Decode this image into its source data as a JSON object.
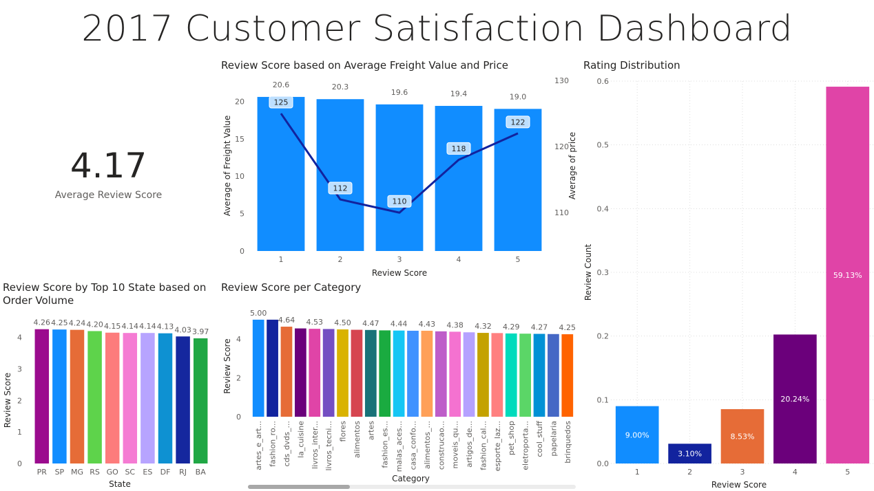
{
  "dashboard": {
    "title": "2017 Customer Satisfaction Dashboard"
  },
  "kpi": {
    "value": "4.17",
    "label": "Average Review Score"
  },
  "chart_data": [
    {
      "id": "freight",
      "type": "bar",
      "title": "Review Score based on Average Freight Value and Price",
      "xlabel": "Review Score",
      "ylabel": "Average of Freight Value",
      "y2label": "Average of price",
      "categories": [
        "1",
        "2",
        "3",
        "4",
        "5"
      ],
      "series": [
        {
          "name": "Average of Freight Value",
          "type": "bar",
          "values": [
            20.6,
            20.3,
            19.6,
            19.4,
            19.0
          ],
          "labels": [
            "20.6",
            "20.3",
            "19.6",
            "19.4",
            "19.0"
          ],
          "color": "#118DFF"
        },
        {
          "name": "Average of price",
          "type": "line",
          "axis": "secondary",
          "values": [
            125,
            112,
            110,
            118,
            122
          ],
          "labels": [
            "125",
            "112",
            "110",
            "118",
            "122"
          ],
          "color": "#12239E"
        }
      ],
      "ylim": [
        0,
        22.8
      ],
      "yticks": [
        "0",
        "5",
        "10",
        "15",
        "20"
      ],
      "y2lim": [
        104.2,
        130
      ],
      "y2ticks": [
        "110",
        "120",
        "130"
      ],
      "grid": false
    },
    {
      "id": "rating",
      "type": "bar",
      "title": "Rating Distribution",
      "xlabel": "Review Score",
      "ylabel": "Review Count",
      "categories": [
        "1",
        "2",
        "3",
        "4",
        "5"
      ],
      "values": [
        0.09,
        0.031,
        0.0853,
        0.2024,
        0.5913
      ],
      "labels": [
        "9.00%",
        "3.10%",
        "8.53%",
        "20.24%",
        "59.13%"
      ],
      "colors": [
        "#118DFF",
        "#12239E",
        "#E66C37",
        "#6B007B",
        "#E044A7"
      ],
      "ylim": [
        0,
        0.6
      ],
      "yticks": [
        "0.0",
        "0.1",
        "0.2",
        "0.3",
        "0.4",
        "0.5",
        "0.6"
      ],
      "grid": true
    },
    {
      "id": "state",
      "type": "bar",
      "title": "Review Score by Top 10 State based on Order Volume",
      "xlabel": "State",
      "ylabel": "Review Score",
      "categories": [
        "PR",
        "SP",
        "MG",
        "RS",
        "GO",
        "SC",
        "ES",
        "DF",
        "RJ",
        "BA"
      ],
      "values": [
        4.26,
        4.25,
        4.24,
        4.2,
        4.15,
        4.14,
        4.14,
        4.13,
        4.03,
        3.97
      ],
      "labels": [
        "4.26",
        "4.25",
        "4.24",
        "4.20",
        "4.15",
        "4.14",
        "4.14",
        "4.13",
        "4.03",
        "3.97"
      ],
      "colors": [
        "#9B0B8E",
        "#118DFF",
        "#E66C37",
        "#5ED34B",
        "#FD7C7C",
        "#F57BD3",
        "#B7A4FF",
        "#0E91D2",
        "#15279E",
        "#20A745"
      ],
      "ylim": [
        0,
        4.45
      ],
      "yticks": [
        "0",
        "1",
        "2",
        "3",
        "4"
      ],
      "grid": false
    },
    {
      "id": "category",
      "type": "bar",
      "title": "Review Score per Category",
      "xlabel": "Category",
      "ylabel": "Review Score",
      "categories": [
        "artes_e_art...",
        "fashion_ro...",
        "cds_dvds_...",
        "la_cuisine",
        "livros_inter...",
        "livros_tecni...",
        "flores",
        "alimentos",
        "artes",
        "fashion_es...",
        "malas_aces...",
        "casa_confo...",
        "alimentos_...",
        "construcao...",
        "moveis_qu...",
        "artigos_de...",
        "fashion_cal...",
        "esporte_laz...",
        "pet_shop",
        "eletroporta...",
        "cool_stuff",
        "papelaria",
        "brinquedos"
      ],
      "values": [
        5.0,
        5.0,
        4.64,
        4.55,
        4.53,
        4.52,
        4.5,
        4.48,
        4.47,
        4.45,
        4.44,
        4.43,
        4.43,
        4.4,
        4.38,
        4.35,
        4.32,
        4.31,
        4.29,
        4.28,
        4.27,
        4.26,
        4.25
      ],
      "labels": [
        "5.00",
        "",
        "4.64",
        "",
        "4.53",
        "",
        "4.50",
        "",
        "4.47",
        "",
        "4.44",
        "",
        "4.43",
        "",
        "4.38",
        "",
        "4.32",
        "",
        "4.29",
        "",
        "4.27",
        "",
        "4.25"
      ],
      "colors": [
        "#118DFF",
        "#12239E",
        "#E66C37",
        "#6B007B",
        "#E044A7",
        "#744EC2",
        "#D9B300",
        "#D64550",
        "#197278",
        "#1AAB40",
        "#15C6F4",
        "#4092FF",
        "#FFA058",
        "#BE5DC9",
        "#F472D0",
        "#B5A1FF",
        "#C4A200",
        "#FF8080",
        "#00DBBC",
        "#5BD667",
        "#0091D5",
        "#4668C5",
        "#FF6300"
      ],
      "ylim": [
        0,
        5.35
      ],
      "yticks": [
        "0",
        "2",
        "4"
      ],
      "grid": false
    }
  ]
}
